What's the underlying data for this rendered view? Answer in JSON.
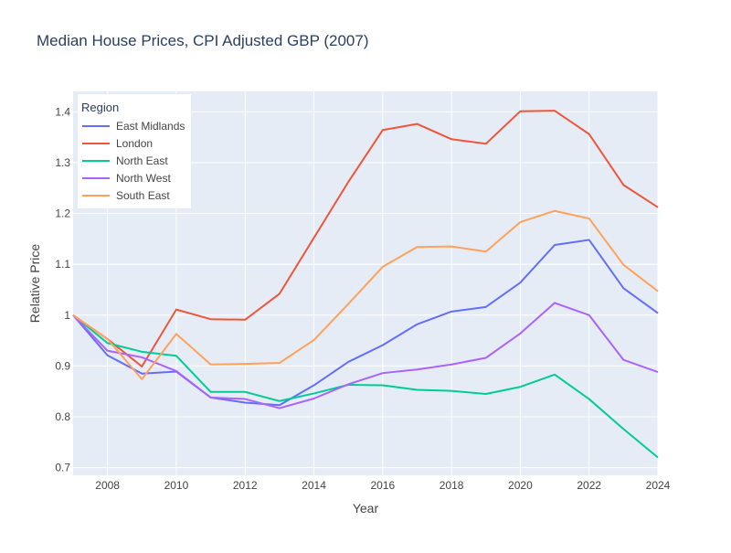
{
  "chart_data": {
    "type": "line",
    "title": "Median House Prices, CPI Adjusted GBP (2007)",
    "xlabel": "Year",
    "ylabel": "Relative Price",
    "xlim": [
      2007,
      2024
    ],
    "ylim": [
      0.685,
      1.44
    ],
    "x_ticks": [
      2008,
      2010,
      2012,
      2014,
      2016,
      2018,
      2020,
      2022,
      2024
    ],
    "x_tick_labels": [
      "2008",
      "2010",
      "2012",
      "2014",
      "2016",
      "2018",
      "2020",
      "2022",
      "2024"
    ],
    "y_ticks": [
      0.7,
      0.8,
      0.9,
      1.0,
      1.1,
      1.2,
      1.3,
      1.4
    ],
    "y_tick_labels": [
      "0.7",
      "0.8",
      "0.9",
      "1",
      "1.1",
      "1.2",
      "1.3",
      "1.4"
    ],
    "grid": true,
    "legend": {
      "title": "Region",
      "position": "top-left"
    },
    "colors": {
      "plot_background": "#e5ecf6",
      "grid": "#ffffff",
      "text": "#444444",
      "title": "#2a3f5f"
    },
    "x": [
      2007,
      2008,
      2009,
      2010,
      2011,
      2012,
      2013,
      2014,
      2015,
      2016,
      2017,
      2018,
      2019,
      2020,
      2021,
      2022,
      2023,
      2024
    ],
    "series": [
      {
        "name": "East Midlands",
        "color": "#636efa",
        "values": [
          1.0,
          0.921,
          0.885,
          0.889,
          0.838,
          0.828,
          0.823,
          0.862,
          0.908,
          0.941,
          0.982,
          1.007,
          1.016,
          1.064,
          1.138,
          1.148,
          1.053,
          1.004
        ]
      },
      {
        "name": "London",
        "color": "#ef553b",
        "values": [
          1.0,
          0.953,
          0.899,
          1.011,
          0.992,
          0.991,
          1.042,
          1.152,
          1.262,
          1.364,
          1.376,
          1.346,
          1.337,
          1.401,
          1.402,
          1.356,
          1.256,
          1.212
        ]
      },
      {
        "name": "North East",
        "color": "#00cc96",
        "values": [
          1.0,
          0.945,
          0.928,
          0.92,
          0.849,
          0.849,
          0.831,
          0.846,
          0.863,
          0.862,
          0.853,
          0.851,
          0.845,
          0.859,
          0.883,
          0.835,
          0.776,
          0.72
        ]
      },
      {
        "name": "North West",
        "color": "#ab63fa",
        "values": [
          1.0,
          0.93,
          0.917,
          0.89,
          0.838,
          0.835,
          0.817,
          0.836,
          0.864,
          0.886,
          0.893,
          0.903,
          0.916,
          0.964,
          1.024,
          1.0,
          0.912,
          0.888
        ]
      },
      {
        "name": "South East",
        "color": "#ffa15a",
        "values": [
          1.0,
          0.953,
          0.874,
          0.963,
          0.903,
          0.904,
          0.906,
          0.951,
          1.022,
          1.095,
          1.134,
          1.135,
          1.125,
          1.183,
          1.205,
          1.19,
          1.099,
          1.047
        ]
      }
    ]
  }
}
